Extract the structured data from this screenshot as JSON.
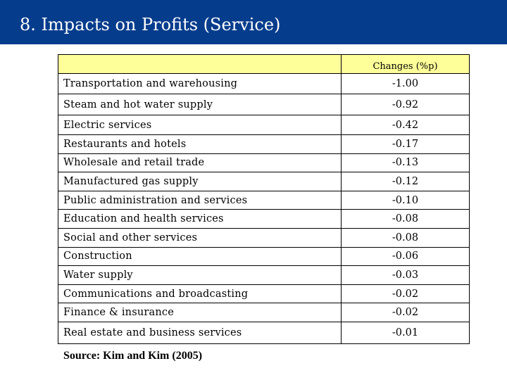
{
  "title": "8. Impacts on Profits (Service)",
  "table": {
    "column_header": "Changes (%p)",
    "rows": [
      {
        "sector": "Transportation and warehousing",
        "change": "-1.00"
      },
      {
        "sector": "Steam and hot water supply",
        "change": "-0.92"
      },
      {
        "sector": "Electric services",
        "change": "-0.42"
      },
      {
        "sector": "Restaurants and hotels",
        "change": "-0.17"
      },
      {
        "sector": "Wholesale and retail trade",
        "change": "-0.13"
      },
      {
        "sector": "Manufactured gas supply",
        "change": "-0.12"
      },
      {
        "sector": "Public administration and services",
        "change": "-0.10"
      },
      {
        "sector": "Education and health services",
        "change": "-0.08"
      },
      {
        "sector": "Social and other services",
        "change": "-0.08"
      },
      {
        "sector": "Construction",
        "change": "-0.06"
      },
      {
        "sector": "Water supply",
        "change": "-0.03"
      },
      {
        "sector": "Communications and broadcasting",
        "change": "-0.02"
      },
      {
        "sector": "Finance & insurance",
        "change": "-0.02"
      },
      {
        "sector": "Real estate and business services",
        "change": "-0.01"
      }
    ]
  },
  "source": "Source: Kim and Kim (2005)",
  "colors": {
    "title_bar": "#063c8c",
    "header_fill": "#ffff99"
  }
}
